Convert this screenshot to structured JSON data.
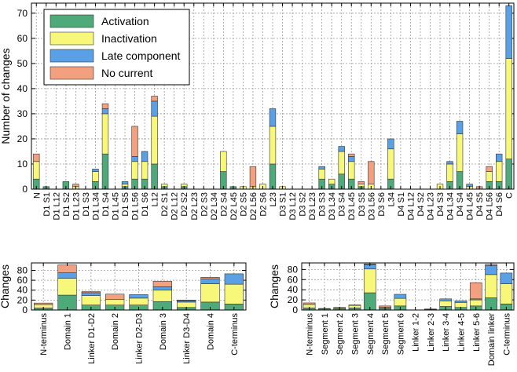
{
  "colors": {
    "Activation": "#4faa7a",
    "Inactivation": "#f7f77a",
    "Late component": "#5aa0e6",
    "No current": "#f2a080"
  },
  "legend": {
    "entries": [
      "Activation",
      "Inactivation",
      "Late component",
      "No current"
    ],
    "placement": "top-left"
  },
  "chart_data": [
    {
      "id": "top",
      "type": "bar",
      "stacked": true,
      "ylabel": "Number of changes",
      "xlabel": "",
      "ylim": [
        0,
        74
      ],
      "yticks": [
        0,
        10,
        20,
        30,
        40,
        50,
        60,
        70
      ],
      "grid": true,
      "categories": [
        "N",
        "D1 S1",
        "D1 L12",
        "D1 S2",
        "D1 L23",
        "D1 S3",
        "D1 L34",
        "D1 S4",
        "D1 L45",
        "D1 S5",
        "D1 L56",
        "D1 S6",
        "L12",
        "D2 S1",
        "D2 L12",
        "D2 S2",
        "D2 L23",
        "D2 S3",
        "D2 L34",
        "D2 S4",
        "D2 L45",
        "D2 S5",
        "D2 L56",
        "D2 S6",
        "L23",
        "D3 S1",
        "D3 L12",
        "D3 S2",
        "D3 L23",
        "D3 S3",
        "D3 L34",
        "D3 S4",
        "D3 L45",
        "D3 S5",
        "D3 L56",
        "D3 S6",
        "L34",
        "D4 S1",
        "D4 L12",
        "D4 S2",
        "D4 L23",
        "D4 S3",
        "D4 L34",
        "D4 S4",
        "D4 L45",
        "D4 S5",
        "D4 L56",
        "D4 S6",
        "C"
      ],
      "series": [
        {
          "name": "Activation",
          "values": [
            4,
            1,
            0,
            3,
            0,
            0,
            3,
            14,
            0,
            1,
            4,
            4,
            10,
            1,
            0,
            1,
            0,
            0,
            0,
            7,
            1,
            0,
            0,
            0,
            10,
            0,
            0,
            0,
            0,
            4,
            2,
            6,
            4,
            1,
            0,
            0,
            4,
            0,
            0,
            0,
            0,
            0,
            3,
            7,
            0,
            0,
            3,
            3,
            12
          ]
        },
        {
          "name": "Inactivation",
          "values": [
            7,
            0,
            0,
            0,
            1,
            0,
            4,
            16,
            0,
            1,
            7,
            7,
            19,
            1,
            0,
            1,
            0,
            0,
            0,
            8,
            0,
            1,
            1,
            2,
            15,
            1,
            0,
            0,
            0,
            4,
            2,
            9,
            7,
            1,
            2,
            0,
            12,
            0,
            0,
            0,
            0,
            2,
            7,
            15,
            1,
            0,
            4,
            8,
            40
          ]
        },
        {
          "name": "Late component",
          "values": [
            0,
            0,
            0,
            0,
            0,
            0,
            1,
            2,
            0,
            1,
            2,
            4,
            6,
            0,
            0,
            0,
            0,
            0,
            0,
            0,
            0,
            0,
            0,
            0,
            7,
            0,
            0,
            0,
            0,
            1,
            0,
            2,
            2,
            0,
            0,
            0,
            4,
            0,
            0,
            0,
            0,
            0,
            1,
            5,
            1,
            0,
            0,
            3,
            21
          ]
        },
        {
          "name": "No current",
          "values": [
            3,
            0,
            0,
            0,
            1,
            0,
            0,
            2,
            0,
            0,
            12,
            0,
            2,
            0,
            0,
            0,
            0,
            0,
            0,
            0,
            0,
            0,
            8,
            0,
            0,
            0,
            0,
            0,
            0,
            0,
            0,
            0,
            1,
            1,
            9,
            0,
            0,
            0,
            0,
            0,
            0,
            0,
            0,
            0,
            0,
            1,
            2,
            0,
            0
          ]
        }
      ]
    },
    {
      "id": "bottom-left",
      "type": "bar",
      "stacked": true,
      "ylabel": "Changes",
      "xlabel": "",
      "ylim": [
        0,
        95
      ],
      "yticks": [
        0,
        20,
        40,
        60,
        80
      ],
      "grid": true,
      "categories": [
        "N-terminus",
        "Domain 1",
        "Linker D1-D2",
        "Domain 2",
        "Linker D2-D3",
        "Domain 3",
        "Linker D3-D4",
        "Domain 4",
        "C-terminus"
      ],
      "series": [
        {
          "name": "Activation",
          "values": [
            4,
            30,
            10,
            10,
            10,
            17,
            5,
            16,
            12
          ]
        },
        {
          "name": "Inactivation",
          "values": [
            7,
            34,
            19,
            11,
            14,
            23,
            11,
            37,
            40
          ]
        },
        {
          "name": "Late component",
          "values": [
            0,
            11,
            6,
            0,
            7,
            7,
            3,
            10,
            21
          ]
        },
        {
          "name": "No current",
          "values": [
            3,
            16,
            2,
            11,
            0,
            11,
            1,
            3,
            0
          ]
        }
      ]
    },
    {
      "id": "bottom-right",
      "type": "bar",
      "stacked": true,
      "ylabel": "Changes",
      "xlabel": "",
      "ylim": [
        0,
        93
      ],
      "yticks": [
        0,
        20,
        40,
        60,
        80
      ],
      "grid": true,
      "categories": [
        "N-terminus",
        "Segment 1",
        "Segment 2",
        "Segment 3",
        "Segment 4",
        "Segment 5",
        "Segment 6",
        "Linker 1-2",
        "Linker 2-3",
        "Linker 3-4",
        "Linker 4-5",
        "Linker 5-6",
        "Domain linker",
        "C-terminus"
      ],
      "series": [
        {
          "name": "Activation",
          "values": [
            4,
            2,
            2,
            4,
            34,
            2,
            8,
            0,
            0,
            7,
            5,
            8,
            24,
            12
          ]
        },
        {
          "name": "Inactivation",
          "values": [
            7,
            1,
            2,
            5,
            47,
            2,
            15,
            0,
            1,
            11,
            10,
            12,
            46,
            40
          ]
        },
        {
          "name": "Late component",
          "values": [
            0,
            0,
            0,
            1,
            9,
            1,
            8,
            0,
            0,
            4,
            3,
            2,
            18,
            21
          ]
        },
        {
          "name": "No current",
          "values": [
            3,
            0,
            1,
            0,
            1,
            3,
            0,
            0,
            1,
            0,
            0,
            32,
            2,
            0
          ]
        }
      ]
    }
  ]
}
